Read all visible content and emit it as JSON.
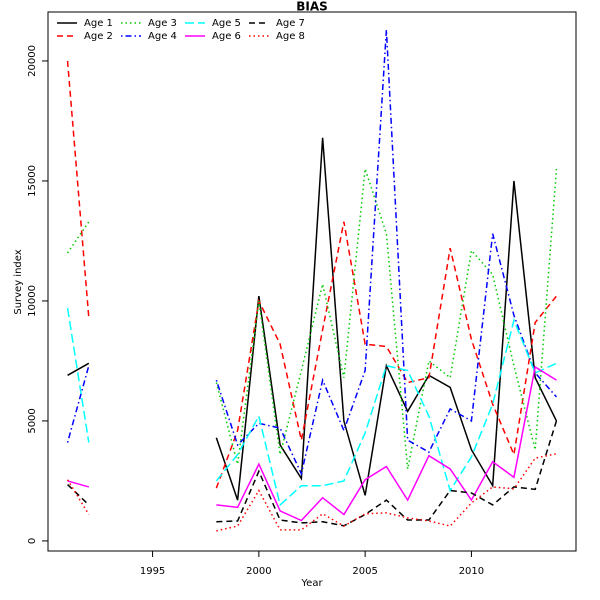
{
  "chart_data": {
    "type": "line",
    "title": "BIAS",
    "xlabel": "Year",
    "ylabel": "Survey index",
    "x": [
      1991,
      1992,
      1993,
      1994,
      1995,
      1996,
      1997,
      1998,
      1999,
      2000,
      2001,
      2002,
      2003,
      2004,
      2005,
      2006,
      2007,
      2008,
      2009,
      2010,
      2011,
      2012,
      2013,
      2014
    ],
    "xlim": [
      1990.08,
      2014.92
    ],
    "xticks": [
      1995,
      2000,
      2005,
      2010
    ],
    "ylim": [
      -420,
      22040
    ],
    "yticks": [
      0,
      5000,
      10000,
      15000,
      20000
    ],
    "legend": "top-left",
    "grid": false,
    "series": [
      {
        "name": "Age 1",
        "color": "#000000",
        "dash": "solid",
        "values": [
          6900,
          7400,
          null,
          null,
          null,
          null,
          null,
          4300,
          1700,
          10200,
          4000,
          2600,
          16800,
          5000,
          1900,
          7300,
          5400,
          6900,
          6400,
          3800,
          2300,
          15000,
          6800,
          5000
        ]
      },
      {
        "name": "Age 2",
        "color": "#ff0000",
        "dash": "dashed",
        "values": [
          20000,
          9300,
          null,
          null,
          null,
          null,
          null,
          2200,
          4600,
          10000,
          8200,
          4200,
          8800,
          13300,
          8200,
          8100,
          6600,
          6800,
          12200,
          8400,
          5700,
          3600,
          9100,
          10200
        ]
      },
      {
        "name": "Age 3",
        "color": "#00cd00",
        "dash": "dotted",
        "values": [
          12000,
          13300,
          null,
          null,
          null,
          null,
          null,
          6600,
          3200,
          10000,
          3600,
          7100,
          10700,
          6800,
          15500,
          12800,
          3000,
          7500,
          6800,
          12100,
          11100,
          7300,
          3800,
          15500
        ]
      },
      {
        "name": "Age 4",
        "color": "#0000ff",
        "dash": "dotdash",
        "values": [
          4100,
          7300,
          null,
          null,
          null,
          null,
          null,
          6700,
          4000,
          4900,
          4700,
          2800,
          6700,
          4600,
          7100,
          21300,
          4200,
          3700,
          5500,
          5000,
          12800,
          9400,
          7000,
          6000
        ]
      },
      {
        "name": "Age 5",
        "color": "#00ffff",
        "dash": "longdash",
        "values": [
          9700,
          4100,
          null,
          null,
          null,
          null,
          null,
          2500,
          3600,
          5200,
          1500,
          2300,
          2300,
          2500,
          4500,
          7300,
          7100,
          5200,
          2100,
          3500,
          5700,
          9200,
          7000,
          7400
        ]
      },
      {
        "name": "Age 6",
        "color": "#ff00ff",
        "dash": "solid",
        "values": [
          2500,
          2250,
          null,
          null,
          null,
          null,
          null,
          1500,
          1400,
          3200,
          1250,
          850,
          1800,
          1100,
          2550,
          3100,
          1700,
          3550,
          3000,
          1700,
          3300,
          2650,
          7250,
          6700
        ]
      },
      {
        "name": "Age 7",
        "color": "#000000",
        "dash": "dashed",
        "values": [
          2350,
          1500,
          null,
          null,
          null,
          null,
          null,
          800,
          830,
          2900,
          870,
          750,
          800,
          630,
          1100,
          1700,
          870,
          870,
          2100,
          2000,
          1500,
          2250,
          2150,
          5000
        ]
      },
      {
        "name": "Age 8",
        "color": "#ff0000",
        "dash": "dotted",
        "values": [
          2550,
          1100,
          null,
          null,
          null,
          null,
          null,
          420,
          620,
          2100,
          460,
          460,
          1130,
          620,
          1130,
          1170,
          960,
          830,
          620,
          1580,
          2250,
          2170,
          3450,
          3630
        ]
      }
    ]
  }
}
